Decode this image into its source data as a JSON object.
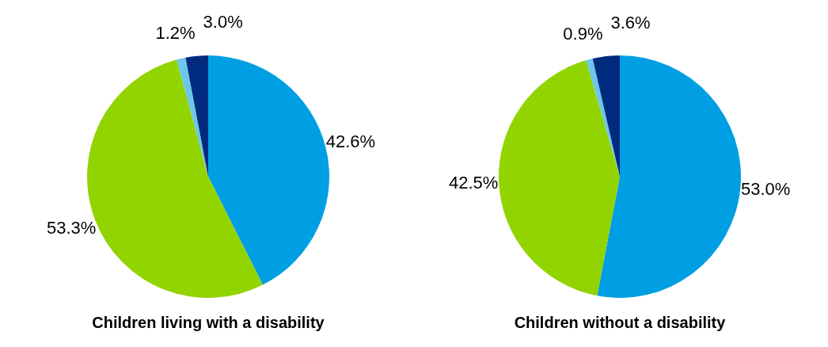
{
  "chart_data": [
    {
      "type": "pie",
      "title": "Children living with a disability",
      "categories": [
        null,
        null,
        null,
        null
      ],
      "values": [
        42.6,
        53.3,
        1.2,
        3.0
      ],
      "colors": [
        "#009fe3",
        "#92d400",
        "#6ec6ea",
        "#002b7f"
      ],
      "value_labels": [
        "42.6%",
        "53.3%",
        "1.2%",
        "3.0%"
      ],
      "legend": false
    },
    {
      "type": "pie",
      "title": "Children without a disability",
      "categories": [
        null,
        null,
        null,
        null
      ],
      "values": [
        53.0,
        42.5,
        0.9,
        3.6
      ],
      "colors": [
        "#009fe3",
        "#92d400",
        "#6ec6ea",
        "#002b7f"
      ],
      "value_labels": [
        "53.0%",
        "42.5%",
        "0.9%",
        "3.6%"
      ],
      "legend": false
    }
  ]
}
